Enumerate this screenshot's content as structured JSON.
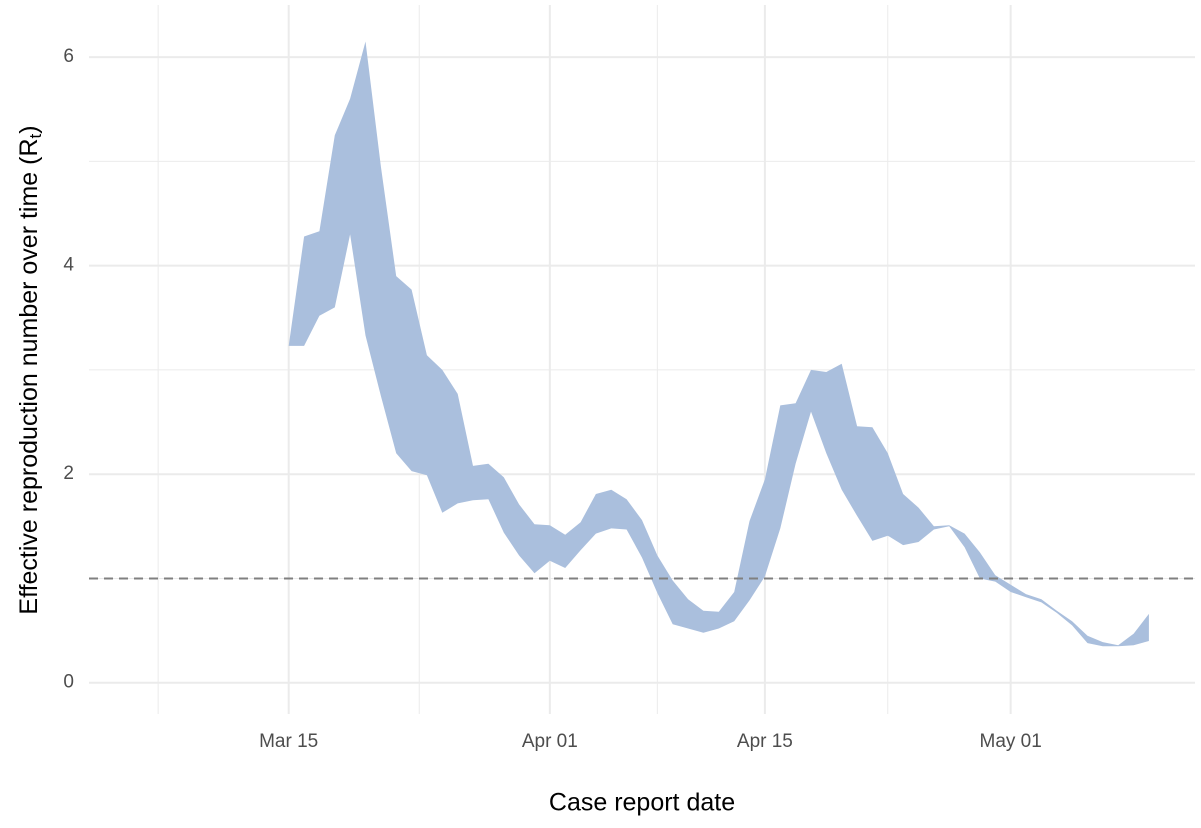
{
  "chart_data": {
    "type": "ribbon",
    "xlabel": "Case report date",
    "ylabel": {
      "text": "Effective reproduction number over time (R",
      "subscript": "t",
      "suffix": ")"
    },
    "x": [
      "03-15",
      "03-16",
      "03-17",
      "03-18",
      "03-19",
      "03-20",
      "03-21",
      "03-22",
      "03-23",
      "03-24",
      "03-25",
      "03-26",
      "03-27",
      "03-28",
      "03-29",
      "03-30",
      "03-31",
      "04-01",
      "04-02",
      "04-03",
      "04-04",
      "04-05",
      "04-06",
      "04-07",
      "04-08",
      "04-09",
      "04-10",
      "04-11",
      "04-12",
      "04-13",
      "04-14",
      "04-15",
      "04-16",
      "04-17",
      "04-18",
      "04-19",
      "04-20",
      "04-21",
      "04-22",
      "04-23",
      "04-24",
      "04-25",
      "04-26",
      "04-27",
      "04-28",
      "04-29",
      "04-30",
      "05-01",
      "05-02",
      "05-03",
      "05-04",
      "05-05",
      "05-06",
      "05-07",
      "05-08",
      "05-09",
      "05-10"
    ],
    "upper": [
      3.23,
      4.28,
      4.33,
      5.25,
      5.6,
      6.15,
      4.95,
      3.9,
      3.77,
      3.14,
      3.0,
      2.77,
      2.08,
      2.1,
      1.97,
      1.71,
      1.52,
      1.51,
      1.42,
      1.54,
      1.81,
      1.85,
      1.76,
      1.56,
      1.22,
      0.98,
      0.8,
      0.69,
      0.68,
      0.87,
      1.55,
      1.95,
      2.66,
      2.68,
      3.0,
      2.98,
      3.06,
      2.46,
      2.45,
      2.2,
      1.81,
      1.68,
      1.5,
      1.51,
      1.43,
      1.25,
      1.03,
      0.94,
      0.85,
      0.8,
      0.69,
      0.59,
      0.45,
      0.39,
      0.36,
      0.47,
      0.66
    ],
    "lower": [
      3.23,
      3.23,
      3.52,
      3.6,
      4.3,
      3.33,
      2.75,
      2.2,
      2.03,
      1.99,
      1.63,
      1.72,
      1.75,
      1.76,
      1.44,
      1.22,
      1.05,
      1.17,
      1.1,
      1.27,
      1.43,
      1.48,
      1.47,
      1.2,
      0.86,
      0.56,
      0.52,
      0.48,
      0.52,
      0.59,
      0.79,
      1.02,
      1.48,
      2.1,
      2.6,
      2.2,
      1.85,
      1.6,
      1.36,
      1.41,
      1.32,
      1.35,
      1.47,
      1.5,
      1.3,
      1.0,
      0.97,
      0.87,
      0.82,
      0.77,
      0.67,
      0.55,
      0.38,
      0.35,
      0.35,
      0.36,
      0.4
    ],
    "color": "#aabfdd",
    "hline": 1,
    "hline_color": "#808080",
    "xlim": [
      "03-02",
      "05-13"
    ],
    "xticks": [
      {
        "value": "03-15",
        "label": "Mar 15"
      },
      {
        "value": "04-01",
        "label": "Apr 01"
      },
      {
        "value": "04-15",
        "label": "Apr 15"
      },
      {
        "value": "05-01",
        "label": "May 01"
      }
    ],
    "ylim": [
      -0.3,
      6.5
    ],
    "yticks": [
      0,
      2,
      4,
      6
    ],
    "grid": true
  }
}
